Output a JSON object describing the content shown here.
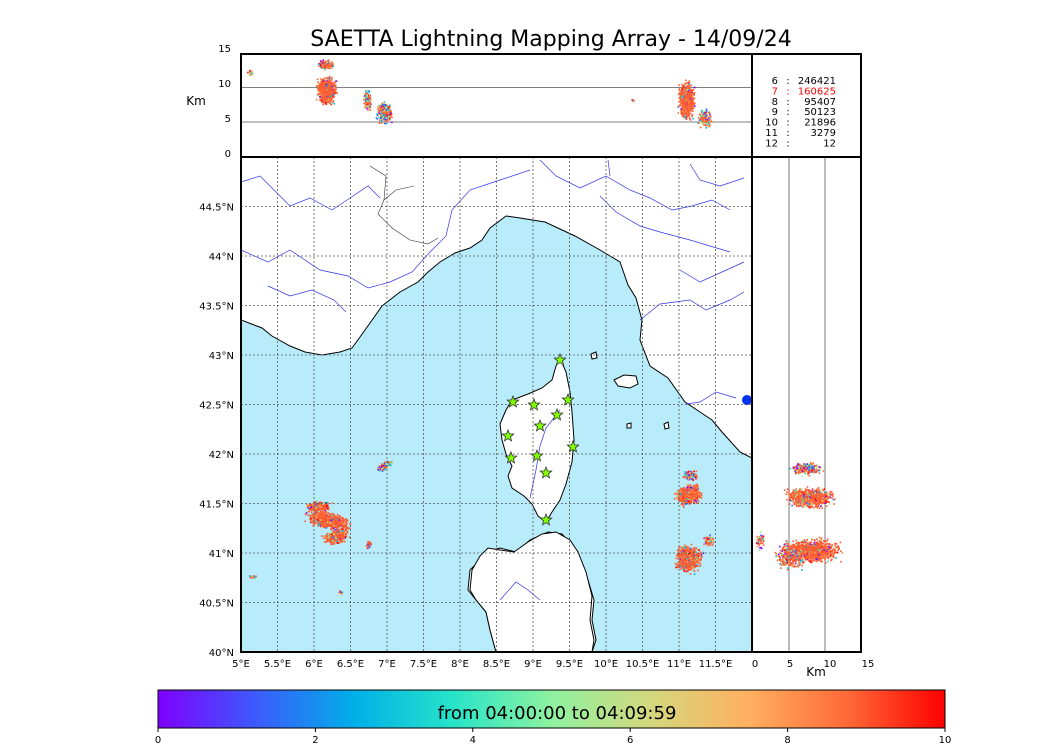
{
  "title": "SAETTA Lightning Mapping Array - 14/09/24",
  "altitude_axis": {
    "unit_label": "Km",
    "ticks": [
      "15",
      "10",
      "5",
      "0"
    ],
    "side_ticks": [
      "0",
      "5",
      "10",
      "15"
    ],
    "side_unit_label": "Km"
  },
  "map_axes": {
    "lat_ticks": [
      "44.5°N",
      "44°N",
      "43.5°N",
      "43°N",
      "42.5°N",
      "42°N",
      "41.5°N",
      "41°N",
      "40.5°N",
      "40°N"
    ],
    "lon_ticks": [
      "5°E",
      "5.5°E",
      "6°E",
      "6.5°E",
      "7°E",
      "7.5°E",
      "8°E",
      "8.5°E",
      "9°E",
      "9.5°E",
      "10°E",
      "10.5°E",
      "11°E",
      "11.5°E"
    ],
    "lat_range": [
      40,
      45
    ],
    "lon_range": [
      5,
      12
    ]
  },
  "counts": [
    {
      "level": "6",
      "sep": ":",
      "count": "246421",
      "color": "#000000"
    },
    {
      "level": "7",
      "sep": ":",
      "count": "160625",
      "color": "#ff0000"
    },
    {
      "level": "8",
      "sep": ":",
      "count": "95407",
      "color": "#000000"
    },
    {
      "level": "9",
      "sep": ":",
      "count": "50123",
      "color": "#000000"
    },
    {
      "level": "10",
      "sep": ":",
      "count": "21896",
      "color": "#000000"
    },
    {
      "level": "11",
      "sep": ":",
      "count": "3279",
      "color": "#000000"
    },
    {
      "level": "12",
      "sep": ":",
      "count": "12",
      "color": "#000000"
    }
  ],
  "colorbar": {
    "label": "from 04:00:00 to 04:09:59",
    "ticks": [
      "0",
      "2",
      "4",
      "6",
      "8",
      "10"
    ],
    "colors": [
      "#7f00ff",
      "#3b5bfb",
      "#00b0e8",
      "#27e4c9",
      "#8ef2a0",
      "#d4d87e",
      "#ffb060",
      "#ff6a38",
      "#ff0000"
    ]
  },
  "sea_color": "#b8ecfb",
  "station_color": "#7fff00"
}
